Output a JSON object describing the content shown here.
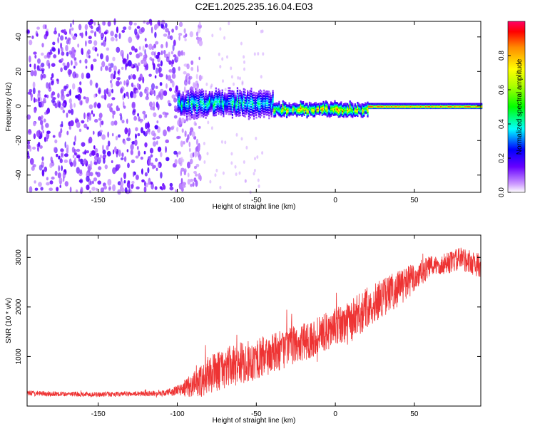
{
  "figure": {
    "title": "C2E1.2025.235.16.04.E03"
  },
  "chart_data": [
    {
      "type": "heatmap",
      "xlabel": "Height of straight line (km)",
      "ylabel": "Frequency (Hz)",
      "xlim": [
        -195,
        92
      ],
      "ylim": [
        -50,
        49
      ],
      "xticks": [
        -150,
        -100,
        -50,
        0,
        50
      ],
      "yticks": [
        -40,
        -20,
        0,
        20,
        40
      ],
      "colorbar": {
        "label": "Normalized spectral amplitude",
        "range": [
          0,
          1
        ],
        "ticks": [
          0.0,
          0.2,
          0.4,
          0.6,
          0.8
        ]
      },
      "regions": [
        {
          "x": [
            -195,
            -100
          ],
          "f": [
            -50,
            49
          ],
          "amplitude": [
            0.05,
            0.2
          ],
          "description": "scattered noise"
        },
        {
          "x": [
            -100,
            -40
          ],
          "f": [
            -5,
            8
          ],
          "amplitude": [
            0.2,
            0.5
          ]
        },
        {
          "x": [
            -40,
            20
          ],
          "f": [
            -5,
            3
          ],
          "amplitude": [
            0.2,
            0.9
          ]
        },
        {
          "x": [
            20,
            92
          ],
          "f": [
            -1,
            1
          ],
          "amplitude": [
            0.6,
            0.95
          ]
        }
      ],
      "colors": {
        "low": "#cc99ff",
        "mid": "#00ff00",
        "high": "#ff0000"
      }
    },
    {
      "type": "line",
      "xlabel": "Height of straight line (km)",
      "ylabel": "SNR (10 * v/v)",
      "xlim": [
        -195,
        92
      ],
      "ylim": [
        0,
        3450
      ],
      "xticks": [
        -150,
        -100,
        -50,
        0,
        50
      ],
      "yticks": [
        1000,
        2000,
        3000
      ],
      "series": [
        {
          "color": "#ee3333",
          "x": [
            -195,
            -170,
            -150,
            -130,
            -110,
            -100,
            -95,
            -90,
            -85,
            -80,
            -70,
            -60,
            -50,
            -40,
            -30,
            -20,
            -10,
            0,
            10,
            20,
            30,
            40,
            50,
            60,
            70,
            80,
            92
          ],
          "y": [
            250,
            240,
            230,
            240,
            250,
            300,
            350,
            400,
            480,
            600,
            720,
            820,
            900,
            1000,
            1150,
            1250,
            1400,
            1550,
            1650,
            1950,
            2150,
            2350,
            2550,
            2800,
            2850,
            2950,
            2800
          ],
          "spread": [
            80,
            70,
            70,
            70,
            80,
            150,
            250,
            350,
            500,
            550,
            600,
            600,
            600,
            600,
            550,
            550,
            550,
            550,
            650,
            600,
            550,
            550,
            450,
            300,
            300,
            350,
            350
          ]
        }
      ]
    }
  ]
}
